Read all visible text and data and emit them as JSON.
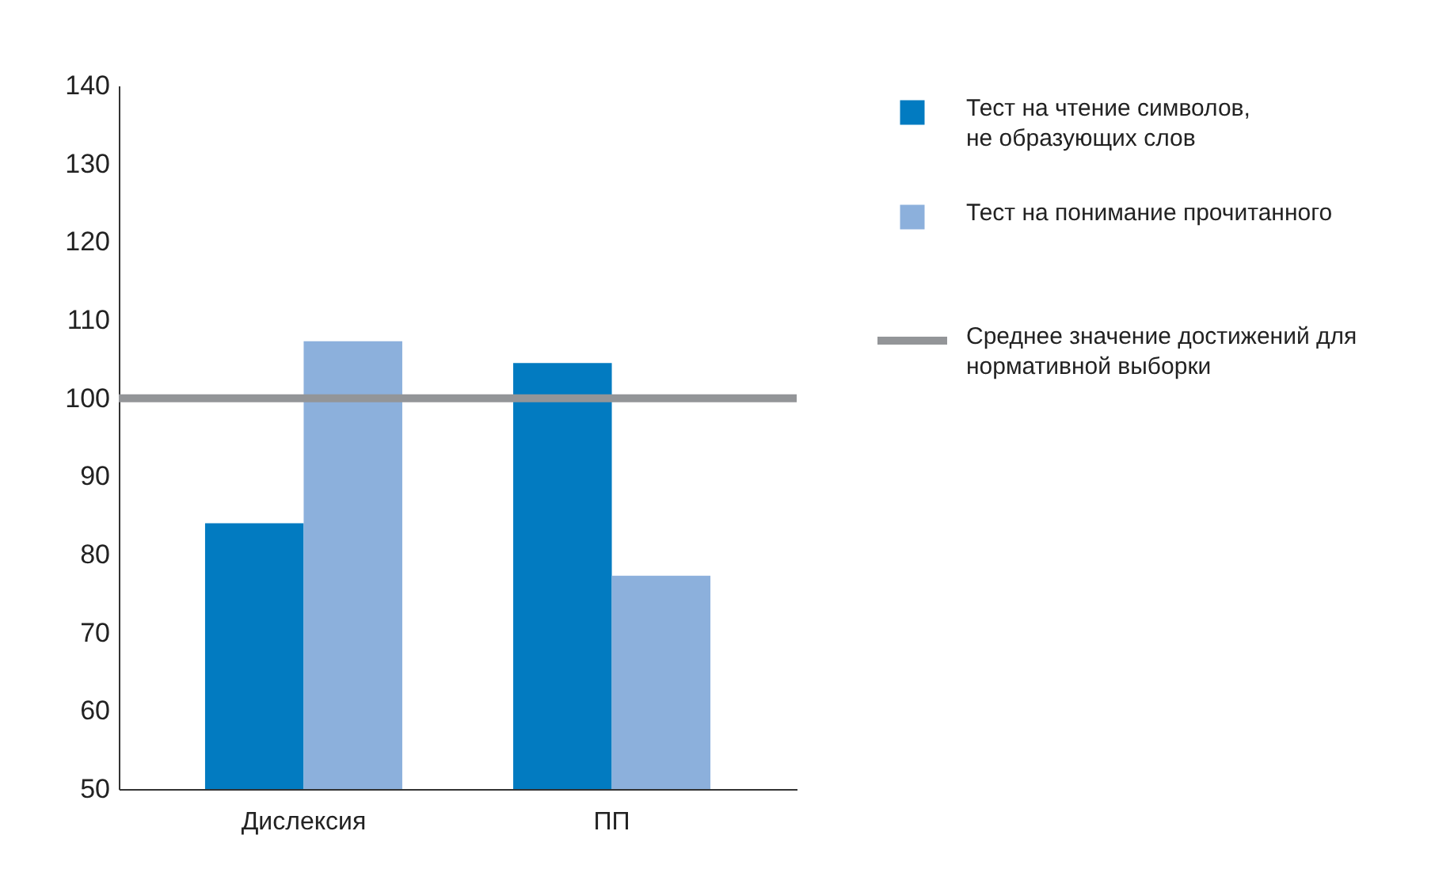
{
  "chart_data": {
    "type": "bar",
    "categories": [
      "Дислексия",
      "ПП"
    ],
    "series": [
      {
        "name": "Тест на чтение символов, не образующих слов",
        "color": "#027bc1",
        "values": [
          84,
          104.5
        ]
      },
      {
        "name": "Тест на понимание прочитанного",
        "color": "#8cb0dc",
        "values": [
          107.3,
          77.3
        ]
      }
    ],
    "ref_lines": [
      {
        "axis": "y",
        "value": 100,
        "label": "Среднее значение достижений для нормативной выборки",
        "color": "#939598"
      }
    ],
    "ylim": [
      50,
      140
    ],
    "yticks": [
      50,
      60,
      70,
      80,
      90,
      100,
      110,
      120,
      130,
      140
    ],
    "grid": false,
    "legend": "right"
  }
}
